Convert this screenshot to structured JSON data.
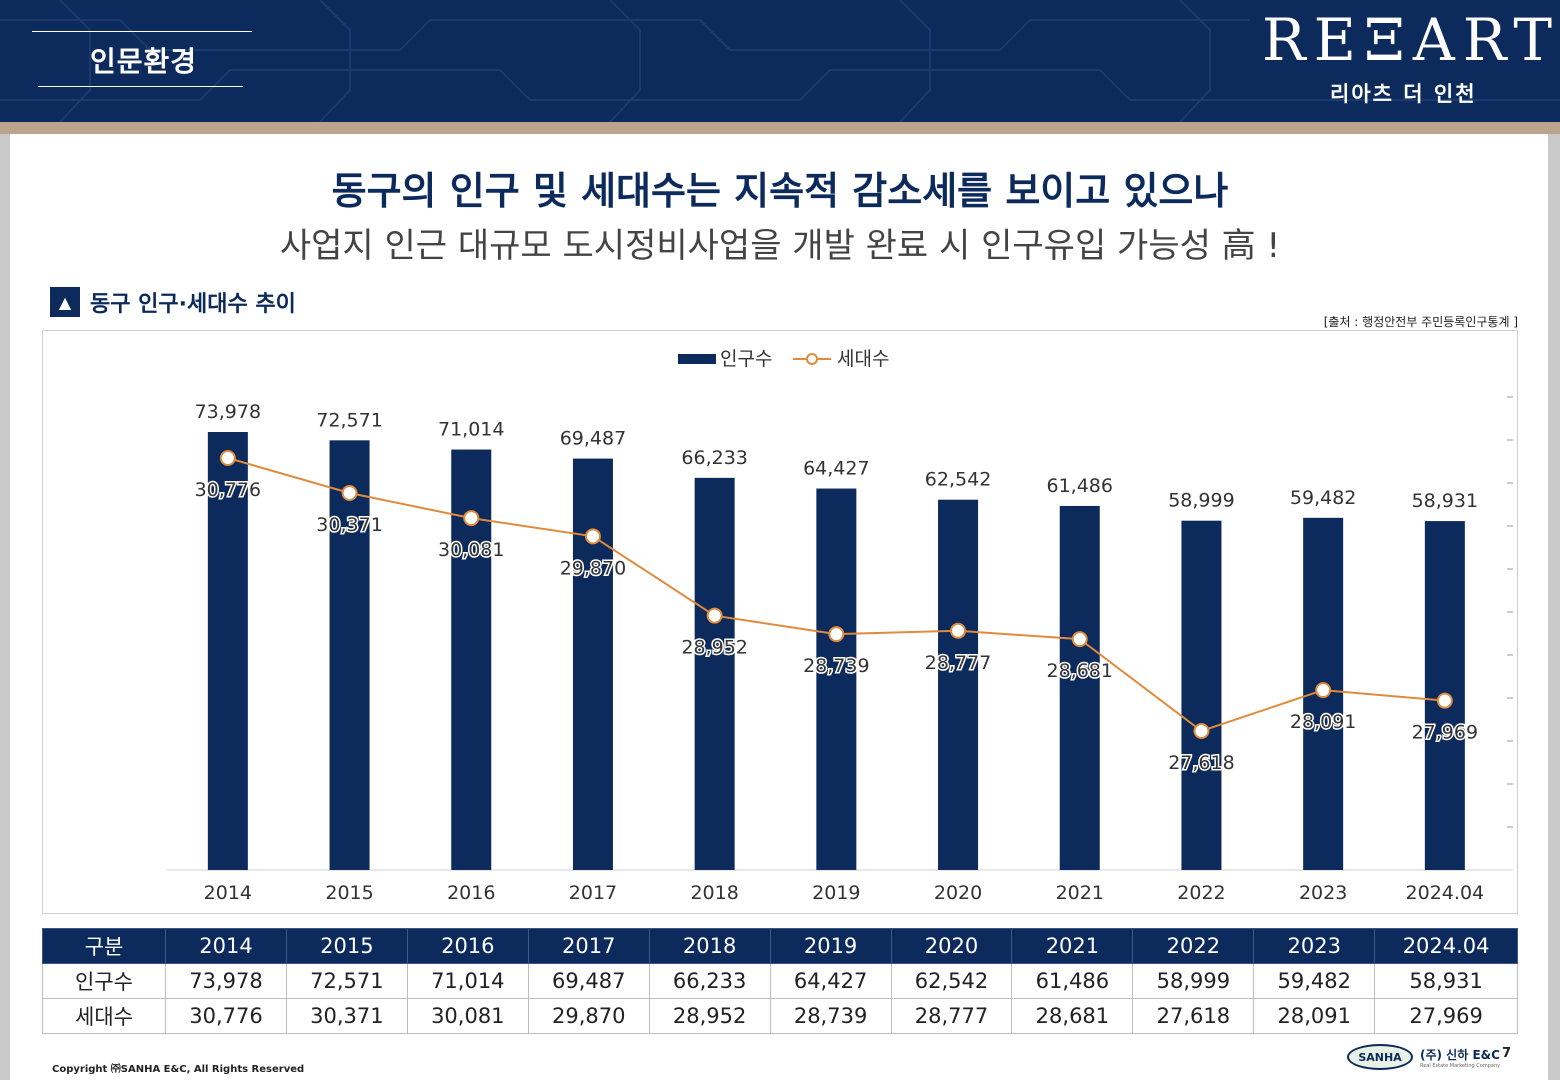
{
  "header": {
    "section_title": "인문환경",
    "logo": "REΞARTZ",
    "logo_sub": "리아츠 더 인천"
  },
  "headline": "동구의 인구 및 세대수는 지속적 감소세를 보이고 있으나",
  "subline": "사업지 인근 대규모 도시정비사업을 개발 완료 시 인구유입 가능성 高 !",
  "chart_label": "동구 인구·세대수 추이",
  "chart_label_icon": "triangle-up-icon",
  "source": "[출처 : 행정안전부 주민등록인구통계 ]",
  "colors": {
    "navy": "#0c2a5c",
    "orange": "#e08a3c",
    "tan": "#bba38d"
  },
  "chart_data": {
    "type": "bar",
    "categories": [
      "2014",
      "2015",
      "2016",
      "2017",
      "2018",
      "2019",
      "2020",
      "2021",
      "2022",
      "2023",
      "2024.04"
    ],
    "series": [
      {
        "name": "인구수",
        "type": "bar",
        "values": [
          73978,
          72571,
          71014,
          69487,
          66233,
          64427,
          62542,
          61486,
          58999,
          59482,
          58931
        ],
        "labels": [
          "73,978",
          "72,571",
          "71,014",
          "69,487",
          "66,233",
          "64,427",
          "62,542",
          "61,486",
          "58,999",
          "59,482",
          "58,931"
        ]
      },
      {
        "name": "세대수",
        "type": "line",
        "values": [
          30776,
          30371,
          30081,
          29870,
          28952,
          28739,
          28777,
          28681,
          27618,
          28091,
          27969
        ],
        "labels": [
          "30,776",
          "30,371",
          "30,081",
          "29,870",
          "28,952",
          "28,739",
          "28,777",
          "28,681",
          "27,618",
          "28,091",
          "27,969"
        ]
      }
    ],
    "legend": "top-center",
    "grid": false
  },
  "table": {
    "header": [
      "구분",
      "2014",
      "2015",
      "2016",
      "2017",
      "2018",
      "2019",
      "2020",
      "2021",
      "2022",
      "2023",
      "2024.04"
    ],
    "rows": [
      [
        "인구수",
        "73,978",
        "72,571",
        "71,014",
        "69,487",
        "66,233",
        "64,427",
        "62,542",
        "61,486",
        "58,999",
        "59,482",
        "58,931"
      ],
      [
        "세대수",
        "30,776",
        "30,371",
        "30,081",
        "29,870",
        "28,952",
        "28,739",
        "28,777",
        "28,681",
        "27,618",
        "28,091",
        "27,969"
      ]
    ]
  },
  "footer": {
    "copyright": "Copyright ㈜SANHA E&C, All Rights Reserved",
    "company_logo": "SANHA",
    "company": "(주) 신하 E&C",
    "company_sub": "Real Estate Marketing Company",
    "page_number": "7"
  }
}
